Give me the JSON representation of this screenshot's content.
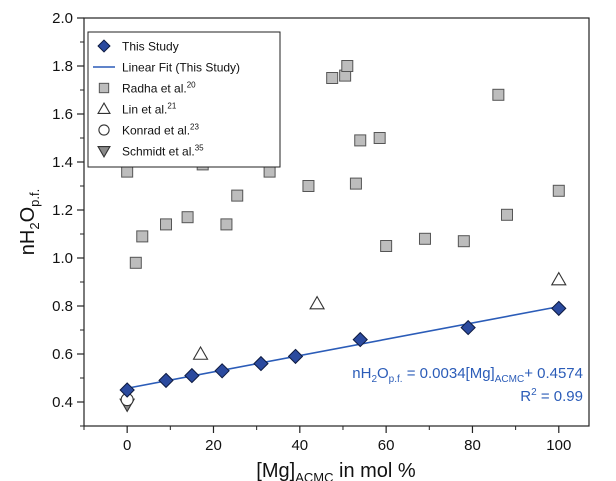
{
  "colors": {
    "study": "#2b4a9e",
    "fit": "#2b5cb8",
    "radha_fill": "#bdbdbd",
    "radha_stroke": "#555555",
    "schmidt_fill": "#8a8a8a",
    "annotation": "#2b5cb8"
  },
  "chart_data": {
    "type": "scatter",
    "xlabel": {
      "main": "[Mg]",
      "sub": "ACMC",
      "rest": " in mol %"
    },
    "ylabel": {
      "main": "nH",
      "sub1": "2",
      "mid": "O",
      "sub2": "p.f."
    },
    "xlim": [
      -10,
      107
    ],
    "ylim": [
      0.3,
      2.0
    ],
    "x_ticks": [
      0,
      20,
      40,
      60,
      80,
      100
    ],
    "x_tick_labels": [
      "0",
      "20",
      "40",
      "60",
      "80",
      "100"
    ],
    "y_ticks": [
      0.4,
      0.6,
      0.8,
      1.0,
      1.2,
      1.4,
      1.6,
      1.8,
      2.0
    ],
    "y_tick_labels": [
      "0.4",
      "0.6",
      "0.8",
      "1.0",
      "1.2",
      "1.4",
      "1.6",
      "1.8",
      "2.0"
    ],
    "legend": [
      {
        "label": "This Study",
        "sup": "",
        "marker": "diamond"
      },
      {
        "label": "Linear Fit (This Study)",
        "sup": "",
        "marker": "line"
      },
      {
        "label": "Radha et al.",
        "sup": "20",
        "marker": "square"
      },
      {
        "label": "Lin et al.",
        "sup": "21",
        "marker": "triangle-up"
      },
      {
        "label": "Konrad et al.",
        "sup": "23",
        "marker": "circle"
      },
      {
        "label": "Schmidt et al.",
        "sup": "35",
        "marker": "triangle-down"
      }
    ],
    "legend_position": "top-left",
    "series": [
      {
        "name": "This Study",
        "marker": "diamond",
        "points": [
          [
            0,
            0.45
          ],
          [
            9,
            0.49
          ],
          [
            15,
            0.51
          ],
          [
            22,
            0.53
          ],
          [
            31,
            0.56
          ],
          [
            39,
            0.59
          ],
          [
            54,
            0.66
          ],
          [
            79,
            0.71
          ],
          [
            100,
            0.79
          ]
        ]
      },
      {
        "name": "Radha et al.",
        "marker": "square",
        "points": [
          [
            0,
            1.36
          ],
          [
            2,
            0.98
          ],
          [
            3.5,
            1.09
          ],
          [
            9,
            1.14
          ],
          [
            14,
            1.17
          ],
          [
            17.5,
            1.39
          ],
          [
            23,
            1.14
          ],
          [
            25.5,
            1.26
          ],
          [
            33,
            1.36
          ],
          [
            42,
            1.3
          ],
          [
            47.5,
            1.75
          ],
          [
            50.5,
            1.76
          ],
          [
            51,
            1.8
          ],
          [
            53,
            1.31
          ],
          [
            54,
            1.49
          ],
          [
            58.5,
            1.5
          ],
          [
            60,
            1.05
          ],
          [
            69,
            1.08
          ],
          [
            78,
            1.07
          ],
          [
            86,
            1.68
          ],
          [
            88,
            1.18
          ],
          [
            100,
            1.28
          ]
        ]
      },
      {
        "name": "Lin et al.",
        "marker": "triangle-up",
        "points": [
          [
            17,
            0.6
          ],
          [
            44,
            0.81
          ],
          [
            100,
            0.91
          ]
        ]
      },
      {
        "name": "Konrad et al.",
        "marker": "circle",
        "points": [
          [
            0,
            0.41
          ]
        ]
      },
      {
        "name": "Schmidt et al.",
        "marker": "triangle-down",
        "points": [
          [
            0,
            0.39
          ]
        ]
      }
    ],
    "fit_line": {
      "name": "Linear Fit (This Study)",
      "slope": 0.0034,
      "intercept": 0.4574,
      "x_range": [
        0,
        100
      ]
    },
    "annotation": {
      "eq_prefix": "nH",
      "eq_sub1": "2",
      "eq_o": "O",
      "eq_sub2": "p.f.",
      "eq_mid": " = 0.0034[Mg]",
      "eq_sub3": "ACMC",
      "eq_suffix": "+ 0.4574",
      "r2_prefix": "R",
      "r2_sup": "2",
      "r2_suffix": " = 0.99"
    }
  }
}
